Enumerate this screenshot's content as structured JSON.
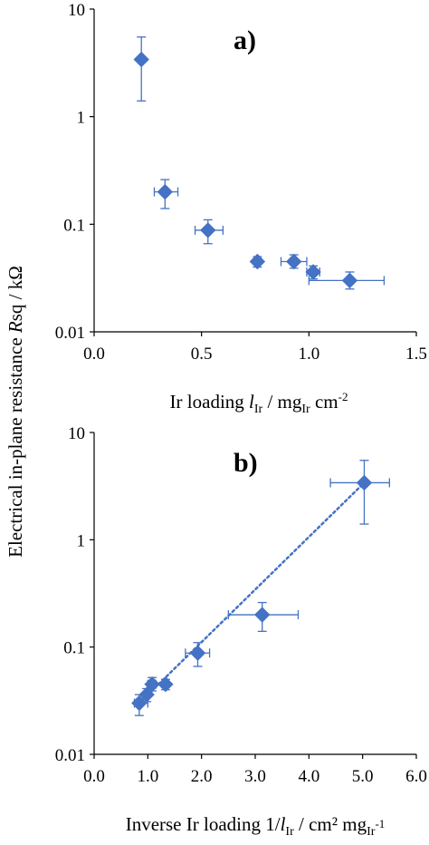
{
  "colors": {
    "series": "#4472C4",
    "axis": "#000000",
    "background": "#ffffff"
  },
  "y_label": {
    "main": "Electrical in-plane resistance ",
    "italic": "R",
    "rest": "sq / kΩ"
  },
  "chart_data": [
    {
      "panel_label": "a)",
      "type": "scatter",
      "title": "",
      "x_scale": "linear",
      "y_scale": "log",
      "xlim": [
        0,
        1.5
      ],
      "ylim": [
        0.01,
        10
      ],
      "x_ticks": [
        "0.0",
        "0.5",
        "1.0",
        "1.5"
      ],
      "y_ticks": [
        "0.01",
        "0.1",
        "1",
        "10"
      ],
      "xlabel_parts": {
        "pre": "Ir loading ",
        "var": "l",
        "var_sub": "Ir",
        "mid": " / mg",
        "unit_sub": "Ir",
        "post": " cm",
        "post_sup": "-2"
      },
      "points": [
        {
          "x": 0.22,
          "y": 3.4,
          "y_err": [
            1.4,
            5.5
          ],
          "x_err": [
            0.22,
            0.22
          ]
        },
        {
          "x": 0.33,
          "y": 0.2,
          "y_err": [
            0.14,
            0.26
          ],
          "x_err": [
            0.28,
            0.39
          ]
        },
        {
          "x": 0.53,
          "y": 0.088,
          "y_err": [
            0.066,
            0.11
          ],
          "x_err": [
            0.47,
            0.6
          ]
        },
        {
          "x": 0.76,
          "y": 0.045,
          "y_err": [
            0.04,
            0.05
          ],
          "x_err": [
            0.76,
            0.76
          ]
        },
        {
          "x": 0.93,
          "y": 0.045,
          "y_err": [
            0.039,
            0.052
          ],
          "x_err": [
            0.87,
            0.99
          ]
        },
        {
          "x": 1.02,
          "y": 0.036,
          "y_err": [
            0.031,
            0.041
          ],
          "x_err": [
            0.99,
            1.05
          ]
        },
        {
          "x": 1.19,
          "y": 0.03,
          "y_err": [
            0.025,
            0.036
          ],
          "x_err": [
            1.0,
            1.35
          ]
        }
      ]
    },
    {
      "panel_label": "b)",
      "type": "scatter",
      "title": "",
      "x_scale": "linear",
      "y_scale": "log",
      "xlim": [
        0,
        6
      ],
      "ylim": [
        0.01,
        10
      ],
      "x_ticks": [
        "0.0",
        "1.0",
        "2.0",
        "3.0",
        "4.0",
        "5.0",
        "6.0"
      ],
      "y_ticks": [
        "0.01",
        "0.1",
        "1",
        "10"
      ],
      "xlabel_parts": {
        "pre": "Inverse Ir loading 1/",
        "var": "l",
        "var_sub": "Ir",
        "mid": " / cm² mg",
        "unit_sub": "Ir",
        "post": "",
        "post_sup": "-1"
      },
      "points": [
        {
          "x": 5.03,
          "y": 3.4,
          "y_err": [
            1.4,
            5.5
          ],
          "x_err": [
            4.4,
            5.5
          ]
        },
        {
          "x": 3.13,
          "y": 0.2,
          "y_err": [
            0.14,
            0.26
          ],
          "x_err": [
            2.5,
            3.8
          ]
        },
        {
          "x": 1.93,
          "y": 0.088,
          "y_err": [
            0.066,
            0.11
          ],
          "x_err": [
            1.7,
            2.15
          ]
        },
        {
          "x": 1.33,
          "y": 0.045,
          "y_err": [
            0.04,
            0.05
          ],
          "x_err": [
            1.33,
            1.33
          ]
        },
        {
          "x": 1.08,
          "y": 0.045,
          "y_err": [
            0.039,
            0.052
          ],
          "x_err": [
            1.0,
            1.15
          ]
        },
        {
          "x": 0.98,
          "y": 0.036,
          "y_err": [
            0.031,
            0.041
          ],
          "x_err": [
            0.95,
            1.01
          ]
        },
        {
          "x": 0.84,
          "y": 0.03,
          "y_err": [
            0.023,
            0.036
          ],
          "x_err": [
            0.75,
            1.0
          ]
        }
      ],
      "trendline": {
        "style": "dotted",
        "from": {
          "x": 0.84,
          "y": 0.03
        },
        "to": {
          "x": 5.03,
          "y": 3.4
        }
      }
    }
  ]
}
